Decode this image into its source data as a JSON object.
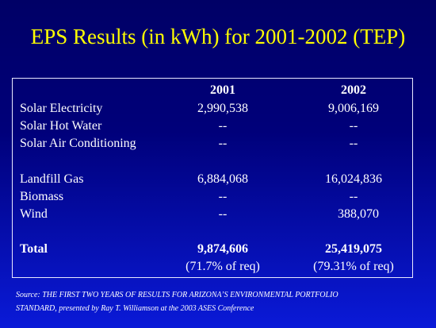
{
  "title": "EPS Results (in kWh) for 2001-2002 (TEP)",
  "columns": [
    "2001",
    "2002"
  ],
  "rows": [
    {
      "label": "Solar Electricity",
      "v2001": "2,990,538",
      "v2002": "9,006,169"
    },
    {
      "label": "Solar Hot Water",
      "v2001": "--",
      "v2002": "--"
    },
    {
      "label": "Solar Air Conditioning",
      "v2001": "--",
      "v2002": "--"
    },
    {
      "label": "Landfill Gas",
      "v2001": "6,884,068",
      "v2002": "16,024,836"
    },
    {
      "label": "Biomass",
      "v2001": "--",
      "v2002": "--"
    },
    {
      "label": "Wind",
      "v2001": "--",
      "v2002": "388,070"
    }
  ],
  "total": {
    "label": "Total",
    "v2001": "9,874,606",
    "v2002": "25,419,075",
    "pct2001": "(71.7% of req)",
    "pct2002": "(79.31% of req)"
  },
  "source_line1": "Source: THE FIRST TWO YEARS OF RESULTS FOR ARIZONA’S ENVIRONMENTAL PORTFOLIO",
  "source_line2": "STANDARD, presented by Ray T. Williamson at the 2003 ASES Conference"
}
